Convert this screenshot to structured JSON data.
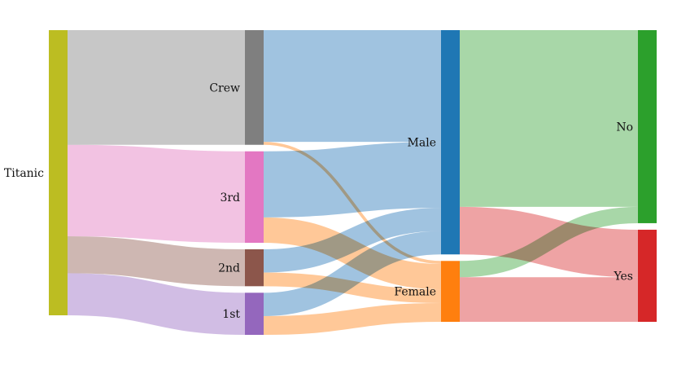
{
  "chart_data": {
    "type": "sankey",
    "nodes": [
      {
        "id": "titanic",
        "label": "Titanic",
        "column": 0,
        "color": "#bcbd22"
      },
      {
        "id": "crew",
        "label": "Crew",
        "column": 1,
        "color": "#7f7f7f",
        "link_color": "#bdbdbd"
      },
      {
        "id": "third",
        "label": "3rd",
        "column": 1,
        "color": "#e377c2",
        "link_color": "#f0b7dd"
      },
      {
        "id": "second",
        "label": "2nd",
        "column": 1,
        "color": "#8c564b",
        "link_color": "#c5aaa4"
      },
      {
        "id": "first",
        "label": "1st",
        "column": 1,
        "color": "#9467bd",
        "link_color": "#c9b2df"
      },
      {
        "id": "male",
        "label": "Male",
        "column": 2,
        "color": "#1f77b4",
        "link_color": "#8fb9da"
      },
      {
        "id": "female",
        "label": "Female",
        "column": 2,
        "color": "#ff7f0e",
        "link_color": "#ffbe86"
      },
      {
        "id": "no",
        "label": "No",
        "column": 3,
        "color": "#2ca02c",
        "link_color": "#99d099"
      },
      {
        "id": "yes",
        "label": "Yes",
        "column": 3,
        "color": "#d62728",
        "link_color": "#eb9394"
      }
    ],
    "links": [
      {
        "source": "titanic",
        "target": "crew",
        "value": 885
      },
      {
        "source": "titanic",
        "target": "third",
        "value": 706
      },
      {
        "source": "titanic",
        "target": "second",
        "value": 285
      },
      {
        "source": "titanic",
        "target": "first",
        "value": 325
      },
      {
        "source": "crew",
        "target": "male",
        "value": 862
      },
      {
        "source": "crew",
        "target": "female",
        "value": 23
      },
      {
        "source": "third",
        "target": "male",
        "value": 510
      },
      {
        "source": "third",
        "target": "female",
        "value": 196
      },
      {
        "source": "second",
        "target": "male",
        "value": 179
      },
      {
        "source": "second",
        "target": "female",
        "value": 106
      },
      {
        "source": "first",
        "target": "male",
        "value": 180
      },
      {
        "source": "first",
        "target": "female",
        "value": 145
      },
      {
        "source": "male",
        "target": "no",
        "value": 1364
      },
      {
        "source": "male",
        "target": "yes",
        "value": 367
      },
      {
        "source": "female",
        "target": "no",
        "value": 126
      },
      {
        "source": "female",
        "target": "yes",
        "value": 344
      }
    ]
  }
}
